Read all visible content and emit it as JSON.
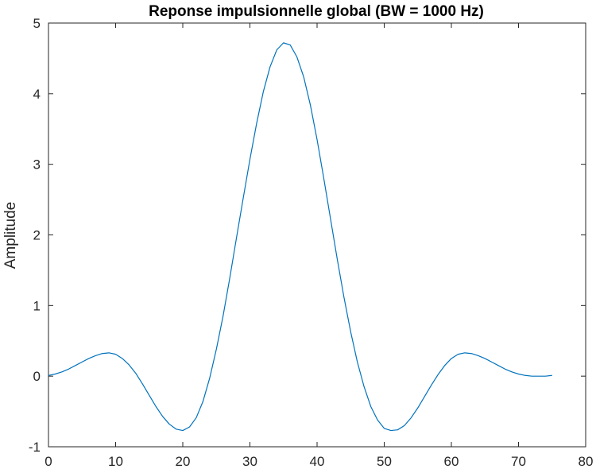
{
  "chart_data": {
    "type": "line",
    "title": "Reponse impulsionnelle global (BW = 1000 Hz)",
    "xlabel": "",
    "ylabel": "Amplitude",
    "xlim": [
      0,
      80
    ],
    "ylim": [
      -1,
      5
    ],
    "xticks": [
      0,
      10,
      20,
      30,
      40,
      50,
      60,
      70,
      80
    ],
    "yticks": [
      -1,
      0,
      1,
      2,
      3,
      4,
      5
    ],
    "grid": false,
    "colors": {
      "line": "#0072BD",
      "axes": "#262626"
    },
    "series": [
      {
        "x": [
          0,
          1,
          2,
          3,
          4,
          5,
          6,
          7,
          8,
          9,
          10,
          11,
          12,
          13,
          14,
          15,
          16,
          17,
          18,
          19,
          20,
          21,
          22,
          23,
          24,
          25,
          26,
          27,
          28,
          29,
          30,
          31,
          32,
          33,
          34,
          35,
          36,
          37,
          38,
          39,
          40,
          41,
          42,
          43,
          44,
          45,
          46,
          47,
          48,
          49,
          50,
          51,
          52,
          53,
          54,
          55,
          56,
          57,
          58,
          59,
          60,
          61,
          62,
          63,
          64,
          65,
          66,
          67,
          68,
          69,
          70,
          71,
          72,
          73,
          74,
          75
        ],
        "y": [
          0.01,
          0.03,
          0.06,
          0.1,
          0.15,
          0.2,
          0.25,
          0.29,
          0.32,
          0.33,
          0.31,
          0.25,
          0.16,
          0.04,
          -0.11,
          -0.27,
          -0.43,
          -0.57,
          -0.68,
          -0.75,
          -0.77,
          -0.72,
          -0.59,
          -0.36,
          -0.03,
          0.38,
          0.85,
          1.39,
          1.96,
          2.52,
          3.07,
          3.58,
          4.03,
          4.38,
          4.62,
          4.72,
          4.69,
          4.52,
          4.24,
          3.84,
          3.35,
          2.8,
          2.23,
          1.66,
          1.12,
          0.63,
          0.2,
          -0.15,
          -0.43,
          -0.62,
          -0.74,
          -0.77,
          -0.76,
          -0.7,
          -0.59,
          -0.45,
          -0.29,
          -0.13,
          0.02,
          0.15,
          0.25,
          0.31,
          0.33,
          0.32,
          0.29,
          0.25,
          0.2,
          0.15,
          0.1,
          0.06,
          0.03,
          0.01,
          0.0,
          0.0,
          0.0,
          0.01
        ]
      }
    ]
  }
}
